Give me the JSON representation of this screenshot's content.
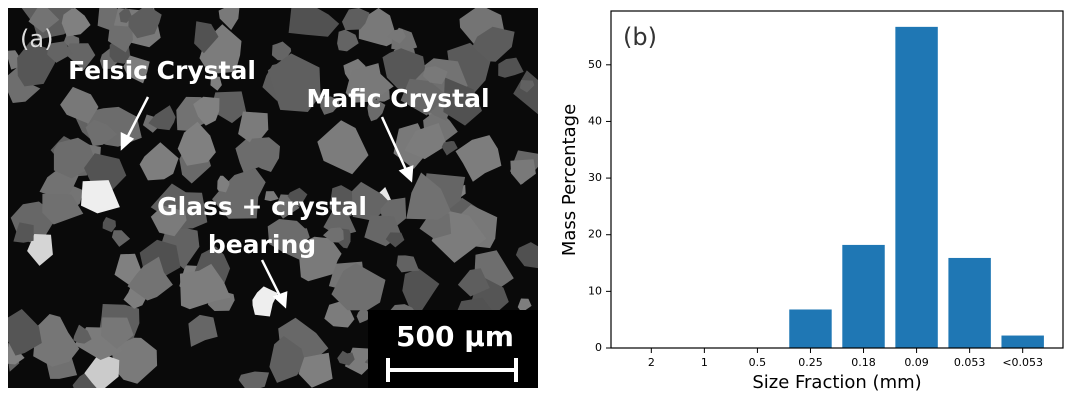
{
  "micrograph": {
    "panel_label": "(a)",
    "annotations": [
      "Felsic Crystal",
      "Mafic Crystal",
      "Glass + crystal",
      "bearing"
    ],
    "scale_bar": "500 μm"
  },
  "chart_data": {
    "type": "bar",
    "panel_label": "(b)",
    "xlabel": "Size Fraction (mm)",
    "ylabel": "Mass Percentage",
    "categories": [
      "2",
      "1",
      "0.5",
      "0.25",
      "0.18",
      "0.09",
      "0.053",
      "<0.053"
    ],
    "values": [
      0,
      0,
      0,
      6.8,
      18.2,
      56.7,
      15.9,
      2.2
    ],
    "color": "#1f77b4",
    "ylim": [
      0,
      59.5
    ],
    "yticks": [
      0,
      10,
      20,
      30,
      40,
      50
    ]
  }
}
